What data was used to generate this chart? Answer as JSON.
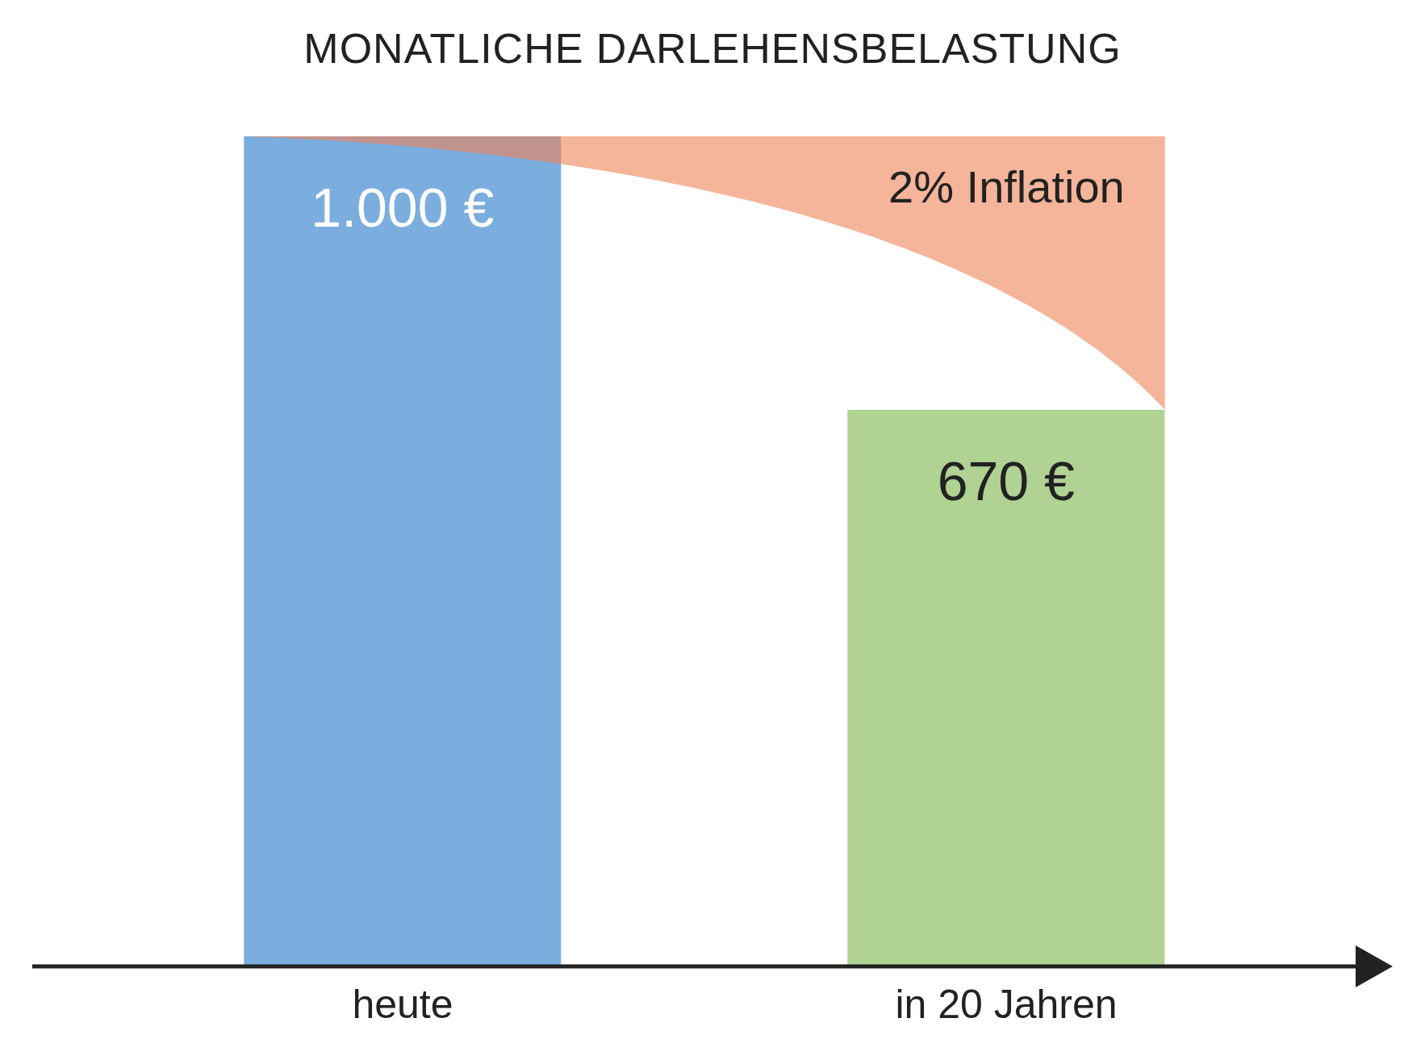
{
  "chart_data": {
    "type": "bar",
    "title": "MONATLICHE DARLEHENSBELASTUNG",
    "categories": [
      "heute",
      "in 20 Jahren"
    ],
    "values": [
      1000,
      670
    ],
    "colors": [
      "#7badde",
      "#b0d292"
    ],
    "value_labels": [
      "1.000 €",
      "670 €"
    ],
    "annotations": [
      "2% Inflation"
    ]
  }
}
